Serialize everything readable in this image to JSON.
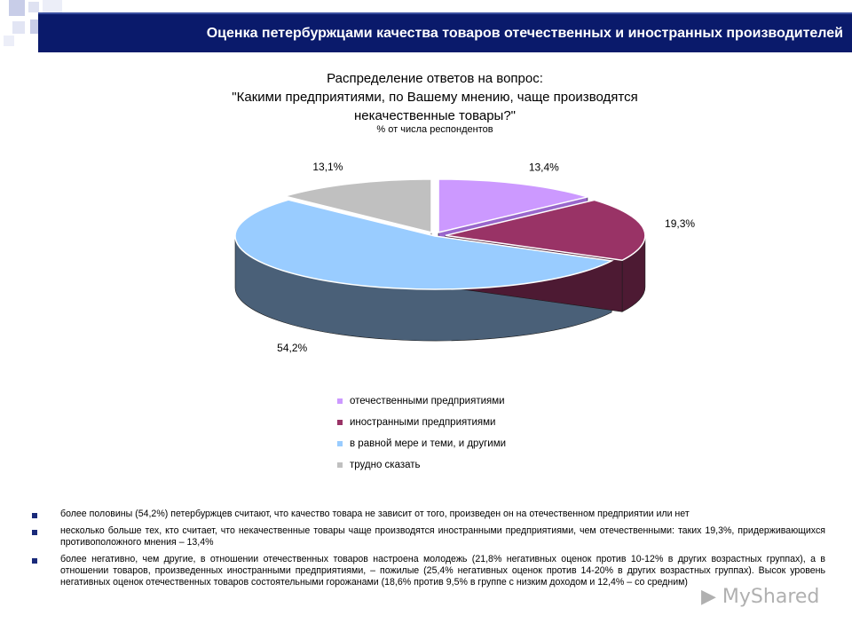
{
  "header": {
    "title": "Оценка петербуржцами качества товаров отечественных и иностранных производителей"
  },
  "chart_data": {
    "type": "pie",
    "title_lines": [
      "Распределение ответов на вопрос:",
      "\"Какими предприятиями, по Вашему мнению, чаще производятся",
      "некачественные товары?\""
    ],
    "subtitle": "% от числа респондентов",
    "slices": [
      {
        "label": "отечественными предприятиями",
        "value": 13.4,
        "value_label": "13,4%",
        "color": "#cc99ff",
        "side_color": "#9966cc"
      },
      {
        "label": "иностранными предприятиями",
        "value": 19.3,
        "value_label": "19,3%",
        "color": "#993366",
        "side_color": "#4d1a33"
      },
      {
        "label": "в равной мере и теми, и другими",
        "value": 54.2,
        "value_label": "54,2%",
        "color": "#99ccff",
        "side_color": "#4a6078"
      },
      {
        "label": "трудно сказать",
        "value": 13.1,
        "value_label": "13,1%",
        "color": "#c0c0c0",
        "side_color": "#808080"
      }
    ],
    "legend_position": "bottom"
  },
  "notes": [
    "более половины (54,2%) петербуржцев считают, что качество товара не зависит от того, произведен он на отечественном предприятии или нет",
    "несколько больше тех, кто считает, что некачественные товары чаще производятся иностранными предприятиями, чем отечественными: таких 19,3%, придерживающихся противоположного мнения – 13,4%",
    "более негативно, чем другие, в отношении отечественных товаров настроена молодежь (21,8% негативных оценок против 10-12% в других возрастных группах), а в отношении товаров, произведенных иностранными предприятиями, – пожилые (25,4% негативных оценок против 14-20% в других возрастных группах). Высок уровень негативных оценок отечественных товаров состоятельными горожанами (18,6% против 9,5% в группе с низким доходом и 12,4% – со средним)"
  ],
  "watermark": "MyShared"
}
